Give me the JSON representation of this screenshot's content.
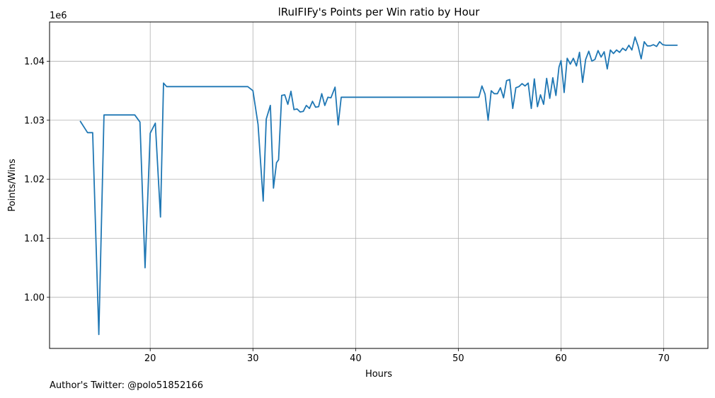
{
  "chart_data": {
    "type": "line",
    "title": "lRuIFIFy's Points per Win ratio by Hour",
    "xlabel": "Hours",
    "ylabel": "Points/Wins",
    "y_offset_label": "1e6",
    "xlim": [
      10.2,
      74.3
    ],
    "ylim": [
      0.99134,
      1.04665
    ],
    "x_ticks": [
      20,
      30,
      40,
      50,
      60,
      70
    ],
    "y_ticks": [
      1.0,
      1.01,
      1.02,
      1.03,
      1.04
    ],
    "x_tick_labels": [
      "20",
      "30",
      "40",
      "50",
      "60",
      "70"
    ],
    "y_tick_labels": [
      "1.00",
      "1.01",
      "1.02",
      "1.03",
      "1.04"
    ],
    "grid": true,
    "color": "#1f77b4",
    "series": [
      {
        "x": [
          13.2,
          13.9,
          14.4,
          15.0,
          15.5,
          18.5,
          19.0,
          19.5,
          20.0,
          20.5,
          21.0,
          21.3,
          21.6,
          29.5,
          30.0,
          30.5,
          31.0,
          31.3,
          31.7,
          32.0,
          32.3,
          32.5,
          32.8,
          33.1,
          33.4,
          33.7,
          34.0,
          34.3,
          34.6,
          34.9,
          35.2,
          35.5,
          35.8,
          36.1,
          36.4,
          36.7,
          37.0,
          37.3,
          37.6,
          38.0,
          38.3,
          38.6,
          52.0,
          52.3,
          52.6,
          52.9,
          53.2,
          53.5,
          53.8,
          54.1,
          54.4,
          54.7,
          55.0,
          55.3,
          55.6,
          55.9,
          56.2,
          56.5,
          56.8,
          57.1,
          57.4,
          57.7,
          58.0,
          58.3,
          58.6,
          58.9,
          59.2,
          59.5,
          59.8,
          60.0,
          60.3,
          60.6,
          60.9,
          61.2,
          61.5,
          61.8,
          62.1,
          62.4,
          62.7,
          63.0,
          63.3,
          63.6,
          63.9,
          64.2,
          64.5,
          64.8,
          65.1,
          65.4,
          65.7,
          66.0,
          66.3,
          66.6,
          66.9,
          67.2,
          67.5,
          67.8,
          68.1,
          68.4,
          68.7,
          69.0,
          69.3,
          69.6,
          69.9,
          70.2,
          71.3
        ],
        "y": [
          1.0298,
          1.0279,
          1.0279,
          0.9937,
          1.0309,
          1.0309,
          1.0297,
          1.005,
          1.0278,
          1.0295,
          1.0136,
          1.0363,
          1.0357,
          1.0357,
          1.035,
          1.0293,
          1.0163,
          1.0302,
          1.0325,
          1.0185,
          1.0228,
          1.0233,
          1.0342,
          1.0343,
          1.0327,
          1.0349,
          1.0318,
          1.0319,
          1.0314,
          1.0315,
          1.0325,
          1.032,
          1.0332,
          1.0322,
          1.0323,
          1.0345,
          1.0325,
          1.0339,
          1.0338,
          1.0356,
          1.0292,
          1.0339,
          1.0339,
          1.0358,
          1.0344,
          1.03,
          1.035,
          1.0345,
          1.0345,
          1.0355,
          1.0338,
          1.0367,
          1.0369,
          1.032,
          1.0355,
          1.0357,
          1.0362,
          1.0358,
          1.0363,
          1.032,
          1.037,
          1.0323,
          1.0343,
          1.0327,
          1.0371,
          1.0337,
          1.0372,
          1.0342,
          1.039,
          1.0401,
          1.0347,
          1.0405,
          1.0395,
          1.0405,
          1.0392,
          1.0415,
          1.0364,
          1.0403,
          1.0417,
          1.04,
          1.0403,
          1.0418,
          1.0407,
          1.0416,
          1.0387,
          1.0419,
          1.0413,
          1.0419,
          1.0415,
          1.0422,
          1.0418,
          1.0427,
          1.0419,
          1.0441,
          1.0426,
          1.0404,
          1.0433,
          1.0426,
          1.0426,
          1.0428,
          1.0425,
          1.0433,
          1.0428,
          1.0427,
          1.0427
        ]
      }
    ]
  },
  "footer": {
    "author_note": "Author's Twitter: @polo51852166"
  }
}
